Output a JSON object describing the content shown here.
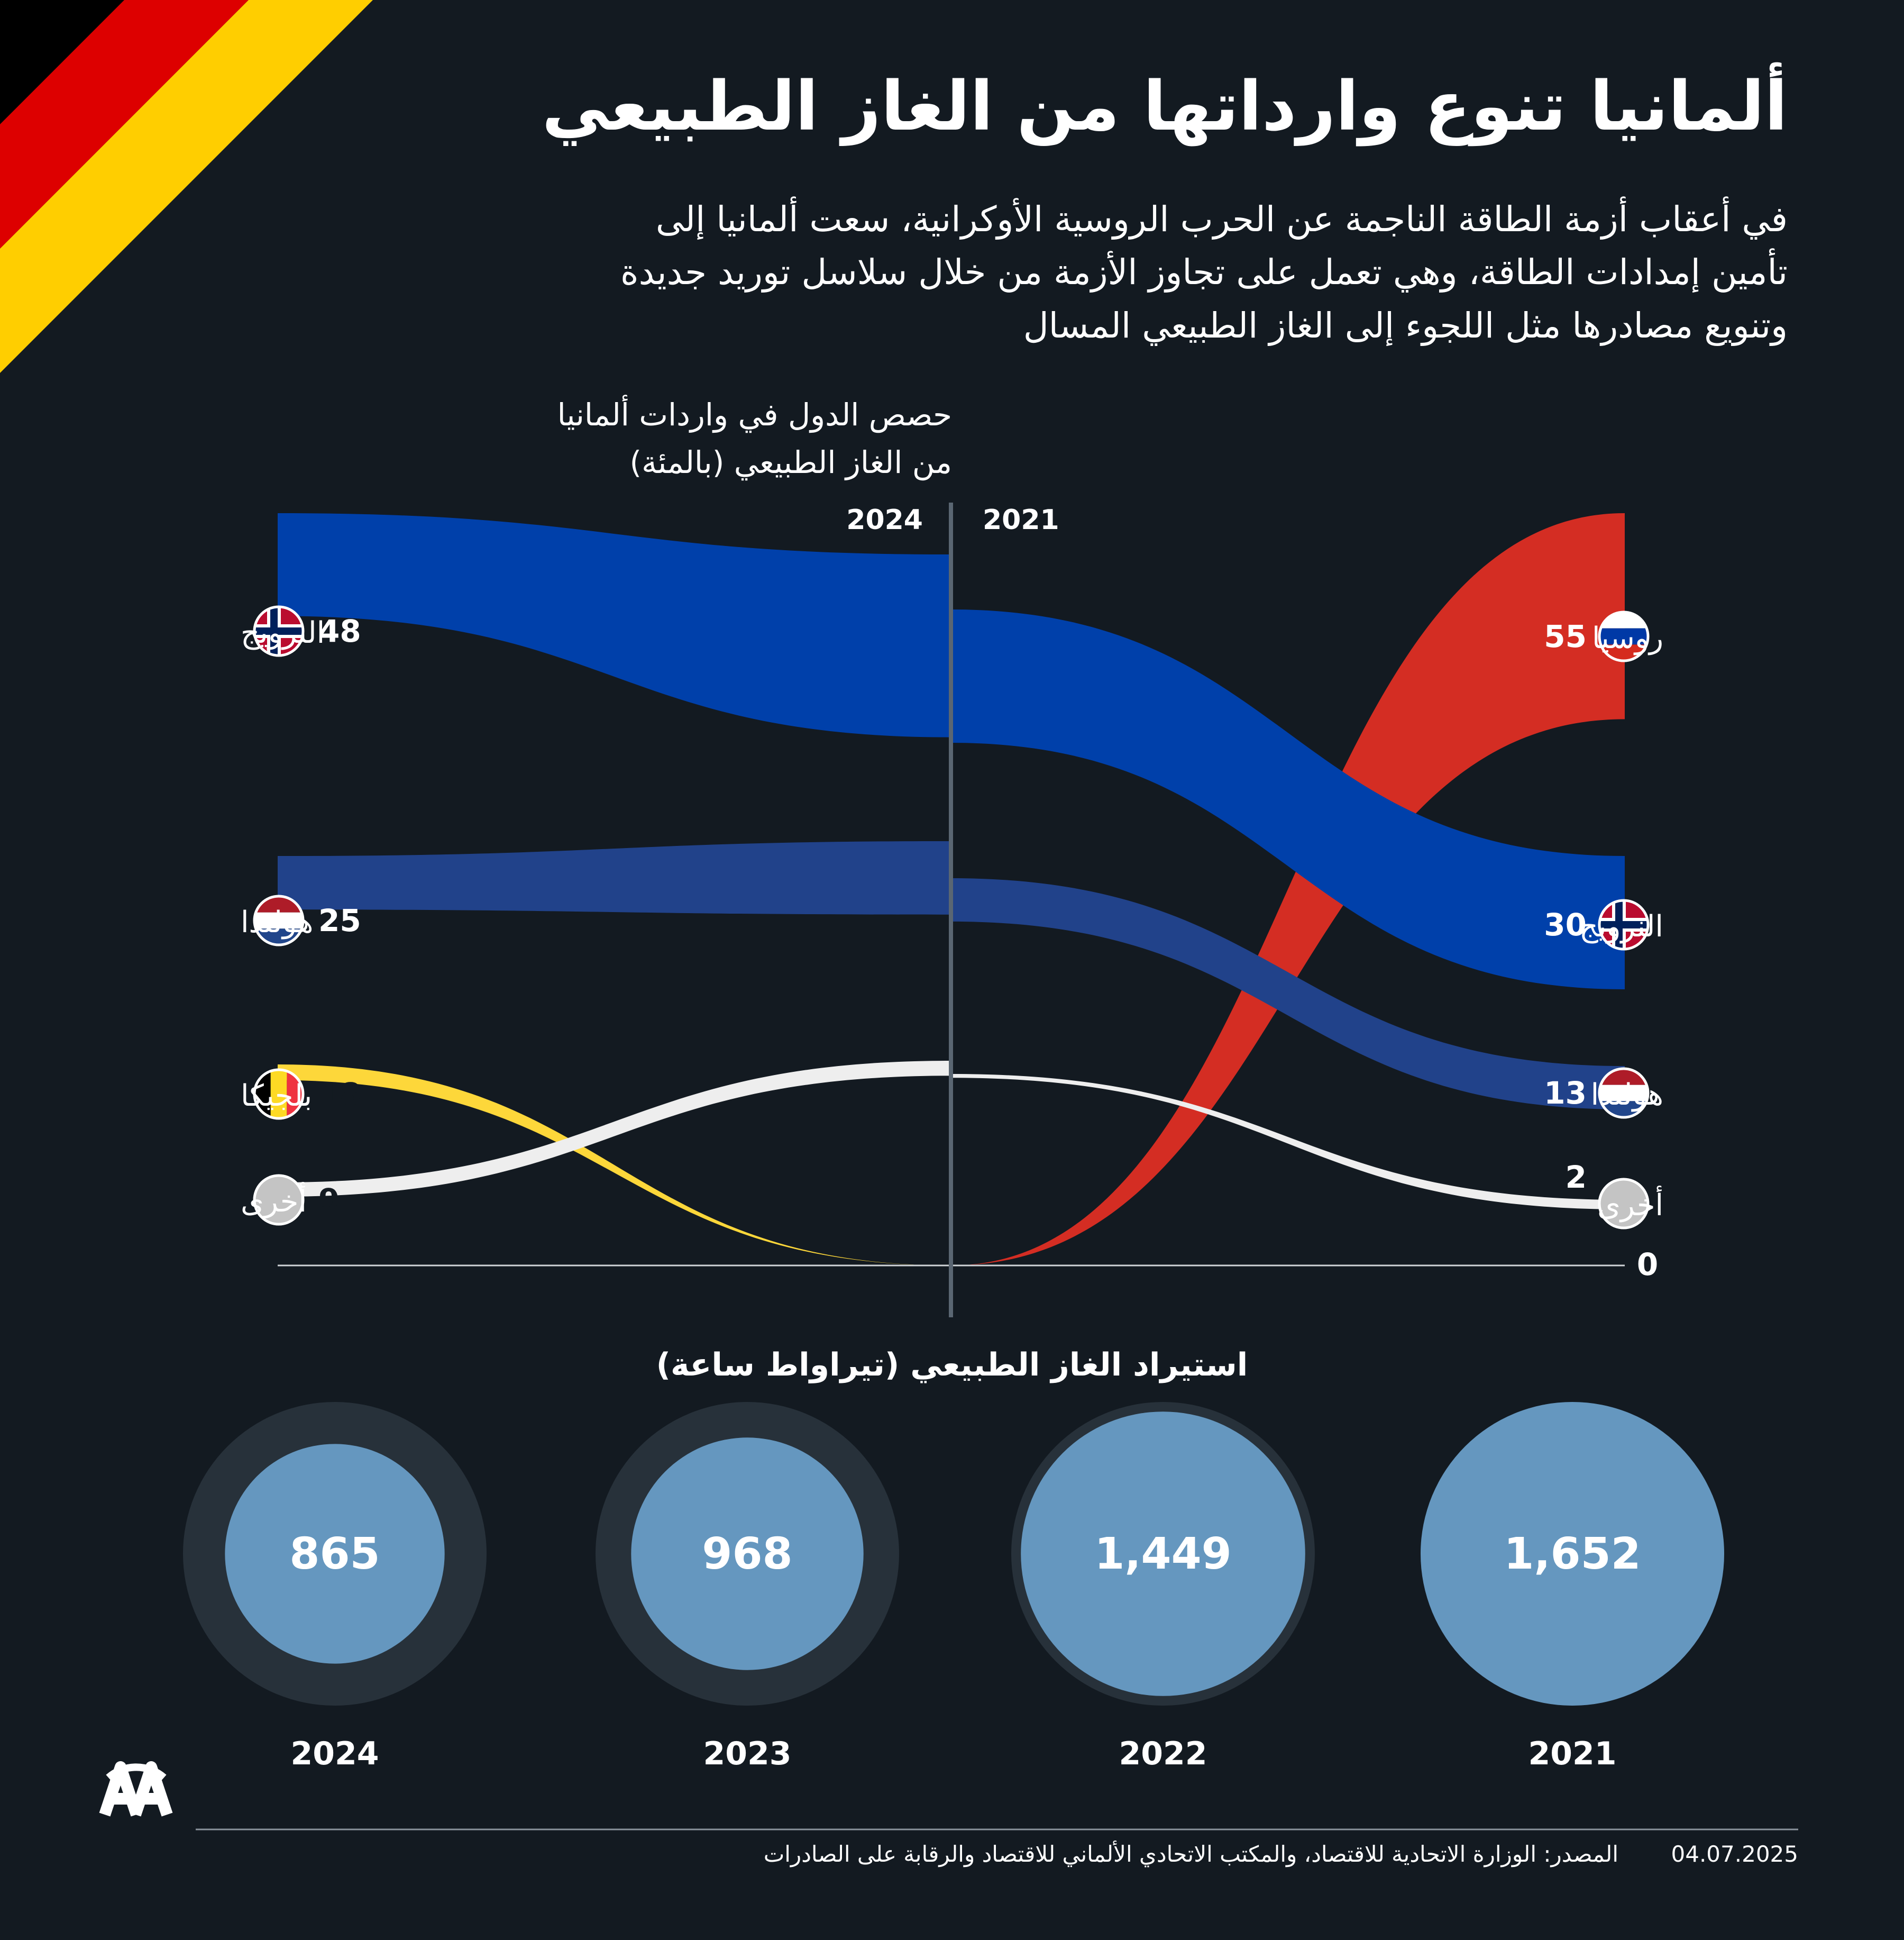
{
  "title": "ألمانيا تنوع وارداتها من الغاز الطبيعي",
  "subtitle_lines": [
    "في أعقاب أزمة الطاقة الناجمة عن الحرب الروسية الأوكرانية، سعت ألمانيا إلى",
    "تأمين إمدادات الطاقة، وهي تعمل على تجاوز الأزمة من خلال سلاسل توريد جديدة",
    "وتنويع مصادرها مثل اللجوء إلى الغاز الطبيعي المسال"
  ],
  "share_label": [
    "حصص الدول في واردات ألمانيا",
    "من الغاز الطبيعي (بالمئة)"
  ],
  "chart_data": [
    {
      "type": "sankey-slope",
      "title": "حصص الدول في واردات ألمانيا من الغاز الطبيعي (بالمئة)",
      "unit": "%",
      "periods": [
        "2021",
        "2024"
      ],
      "zero_label": "0",
      "series": [
        {
          "name": "روسيا",
          "values": {
            "2021": 55,
            "2024": 0
          },
          "color": "#d42d23",
          "flag": "russia-flag"
        },
        {
          "name": "النرويج",
          "values": {
            "2021": 30,
            "2024": 48
          },
          "color": "#0040aa",
          "flag": "norway-flag"
        },
        {
          "name": "هولندا",
          "values": {
            "2021": 13,
            "2024": 25
          },
          "color": "#21428a",
          "flag": "netherlands-flag"
        },
        {
          "name": "بلجيكا",
          "values": {
            "2024": 18
          },
          "color": "#fdd73a",
          "flag": "belgium-flag"
        },
        {
          "name": "أخرى",
          "values": {
            "2021": 2,
            "2024": 9
          },
          "color": "#eeeeee",
          "flag": "grey-dot"
        }
      ]
    },
    {
      "type": "bubble",
      "title": "استيراد الغاز الطبيعي (تيراواط ساعة)",
      "categories": [
        "2024",
        "2023",
        "2022",
        "2021"
      ],
      "values": [
        865,
        968,
        1449,
        1652
      ],
      "value_labels": [
        "865",
        "968",
        "1,449",
        "1,652"
      ],
      "max_reference": 1652
    }
  ],
  "colors": {
    "background": "#131a21",
    "bubble": "#6597bf",
    "bubble_ring": "#27313a",
    "axis": "#5a6672"
  },
  "footer": {
    "source": "المصدر: الوزارة الاتحادية للاقتصاد، والمكتب الاتحادي الألماني للاقتصاد والرقابة على الصادرات",
    "date": "04.07.2025",
    "logo_text": "AA"
  }
}
